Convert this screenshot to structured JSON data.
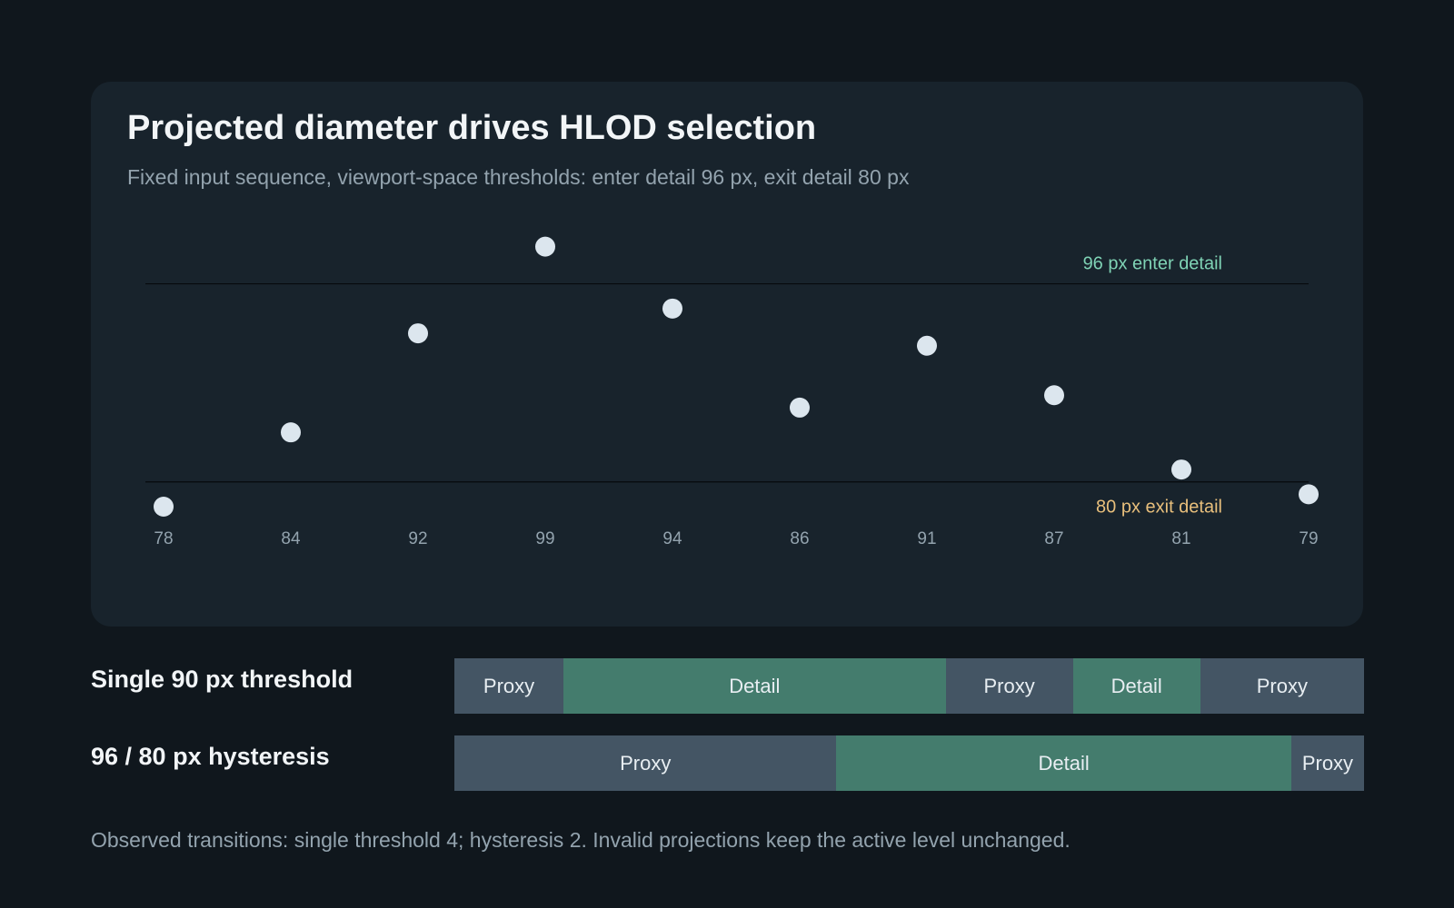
{
  "header": {
    "title": "Projected diameter drives HLOD selection",
    "subtitle": "Fixed input sequence, viewport-space thresholds: enter detail 96 px, exit detail 80 px"
  },
  "colors": {
    "point": "#dce6ee",
    "enter_line": "#7fd3b5",
    "exit_line": "#e8bf7c",
    "proxy": "#445564",
    "detail": "#447c6d"
  },
  "chart_data": {
    "type": "scatter",
    "title": "Projected diameter drives HLOD selection",
    "subtitle": "Fixed input sequence, viewport-space thresholds: enter detail 96 px, exit detail 80 px",
    "x": [
      1,
      2,
      3,
      4,
      5,
      6,
      7,
      8,
      9,
      10
    ],
    "tick_labels": [
      "78",
      "84",
      "92",
      "99",
      "94",
      "86",
      "91",
      "87",
      "81",
      "79"
    ],
    "values": [
      78,
      84,
      92,
      99,
      94,
      86,
      91,
      87,
      81,
      79
    ],
    "ylim": [
      78,
      100
    ],
    "grid": false,
    "thresholds": [
      {
        "value": 96,
        "label": "96 px enter detail",
        "color": "#7fd3b5"
      },
      {
        "value": 80,
        "label": "80 px exit detail",
        "color": "#e8bf7c"
      }
    ]
  },
  "lanes": [
    {
      "label": "Single 90 px threshold",
      "segments": [
        {
          "label": "Proxy",
          "state": "proxy",
          "span": 0.12
        },
        {
          "label": "Detail",
          "state": "detail",
          "span": 0.42
        },
        {
          "label": "Proxy",
          "state": "proxy",
          "span": 0.14
        },
        {
          "label": "Detail",
          "state": "detail",
          "span": 0.14
        },
        {
          "label": "Proxy",
          "state": "proxy",
          "span": 0.18
        }
      ]
    },
    {
      "label": "96 / 80 px hysteresis",
      "segments": [
        {
          "label": "Proxy",
          "state": "proxy",
          "span": 0.42
        },
        {
          "label": "Detail",
          "state": "detail",
          "span": 0.5
        },
        {
          "label": "Proxy",
          "state": "proxy",
          "span": 0.08
        }
      ]
    }
  ],
  "footer": "Observed transitions: single threshold 4; hysteresis 2. Invalid projections keep the active level unchanged."
}
